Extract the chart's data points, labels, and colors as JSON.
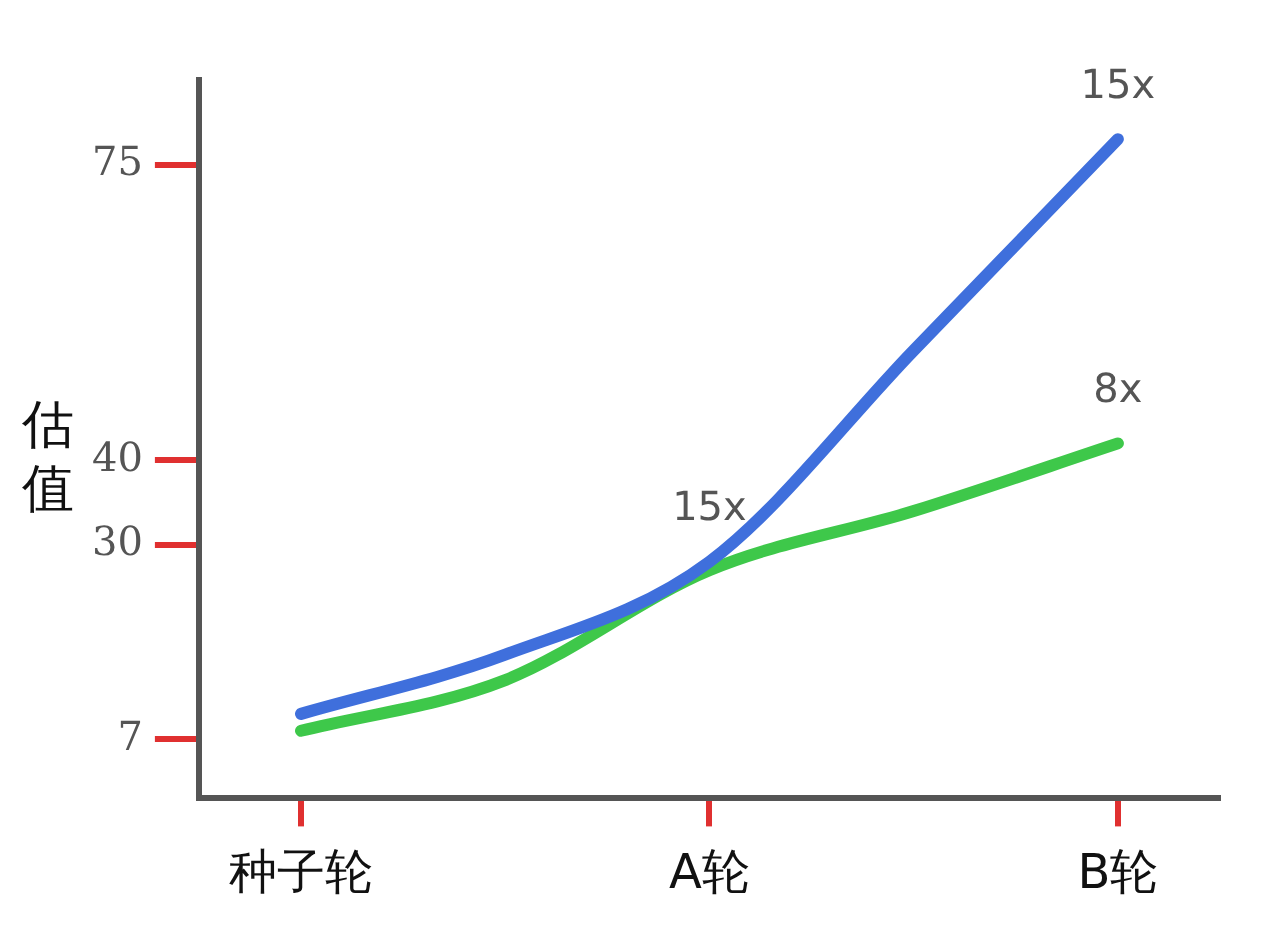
{
  "chart_data": {
    "type": "line",
    "ylabel": "估值",
    "categories": [
      "种子轮",
      null,
      "A轮",
      null,
      "B轮"
    ],
    "ylim": [
      0,
      85
    ],
    "yticks": [
      7,
      30,
      40,
      75
    ],
    "grid": false,
    "legend": false,
    "marker": "none",
    "line_style": "solid",
    "series": [
      {
        "color": "#3f6fdc",
        "values": [
          10,
          17,
          28,
          53,
          78
        ]
      },
      {
        "color": "#3ec84a",
        "values": [
          8,
          14,
          27,
          34,
          42
        ]
      }
    ],
    "annotations": [
      {
        "text": "15x",
        "x": "B轮",
        "y": 78
      },
      {
        "text": "15x",
        "x": "A轮",
        "y": 28
      },
      {
        "text": "8x",
        "x": "B轮",
        "y": 42
      }
    ]
  }
}
